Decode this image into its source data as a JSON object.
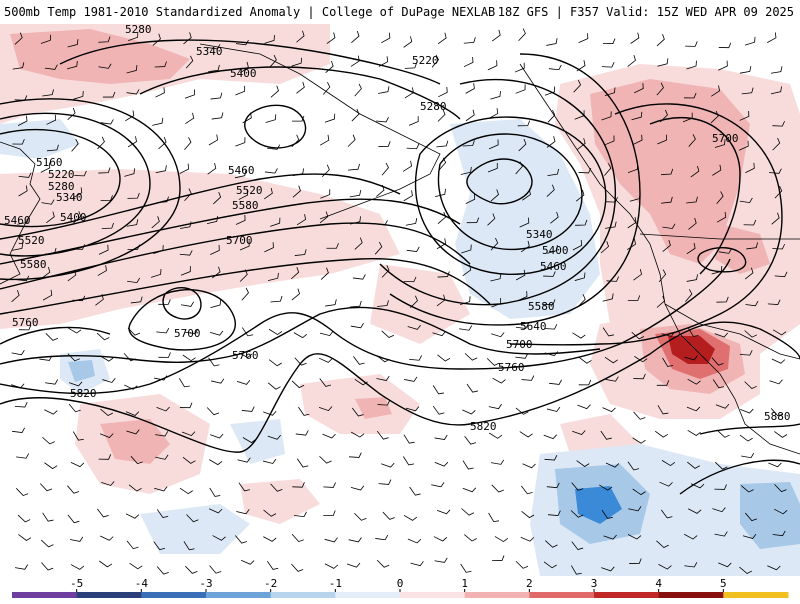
{
  "header": {
    "left_title": "500mb Temp 1981-2010 Standardized Anomaly | College of DuPage NEXLAB",
    "right_title": "18Z GFS | F357 Valid: 15Z WED APR 09 2025"
  },
  "colorbar": {
    "ticks": [
      "-5",
      "-4",
      "-3",
      "-2",
      "-1",
      "0",
      "1",
      "2",
      "3",
      "4",
      "5"
    ],
    "colors": [
      "#6f3fa0",
      "#2a3f7a",
      "#3a6fb8",
      "#6da3d8",
      "#b8d3ec",
      "#e3eef8",
      "#fbe3e3",
      "#f2b2b2",
      "#e06a6a",
      "#c02828",
      "#8a1010",
      "#f0c020"
    ]
  },
  "map": {
    "colors": {
      "warm_light": "#f8dcdc",
      "warm_mid": "#f0b4b4",
      "warm_strong": "#e07070",
      "warm_max": "#b41e1e",
      "cool_light": "#dce8f5",
      "cool_mid": "#a8c8e8",
      "cool_strong": "#3a8ad8",
      "contour": "#000000",
      "coast": "#000000"
    },
    "contour_labels": [
      "5280",
      "5340",
      "5400",
      "5220",
      "5280",
      "5160",
      "5220",
      "5280",
      "5340",
      "5400",
      "5460",
      "5520",
      "5580",
      "5460",
      "5520",
      "5580",
      "5700",
      "5700",
      "5760",
      "5340",
      "5400",
      "5460",
      "5580",
      "5640",
      "5700",
      "5760",
      "5700",
      "5760",
      "5820",
      "5820",
      "5880"
    ]
  }
}
